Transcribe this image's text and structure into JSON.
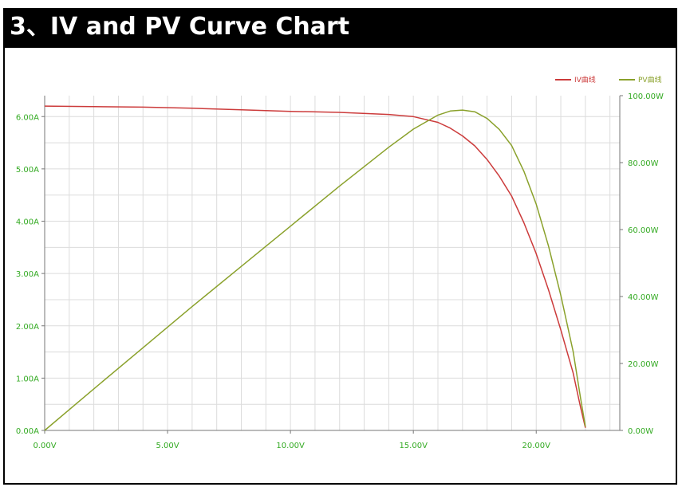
{
  "header": {
    "title": "3、IV and PV Curve Chart"
  },
  "chart_data": {
    "type": "line",
    "title": "3、IV and PV Curve Chart",
    "xlabel": "",
    "ylabel_left": "",
    "ylabel_right": "",
    "xlim": [
      0,
      23.4
    ],
    "ylim_left": [
      0,
      6.4
    ],
    "ylim_right": [
      0,
      100
    ],
    "x_ticks": [
      "0.00V",
      "5.00V",
      "10.00V",
      "15.00V",
      "20.00V"
    ],
    "x_tick_values": [
      0,
      5,
      10,
      15,
      20
    ],
    "y_left_ticks": [
      "0.00A",
      "1.00A",
      "2.00A",
      "3.00A",
      "4.00A",
      "5.00A",
      "6.00A"
    ],
    "y_left_tick_values": [
      0,
      1,
      2,
      3,
      4,
      5,
      6
    ],
    "y_right_ticks": [
      "0.00W",
      "20.00W",
      "40.00W",
      "60.00W",
      "80.00W",
      "100.00W"
    ],
    "y_right_tick_values": [
      0,
      20,
      40,
      60,
      80,
      100
    ],
    "grid": true,
    "legend_position": "top-right",
    "colors": {
      "iv": "#cc3b3b",
      "pv": "#8aa12b",
      "tick": "#33aa22",
      "grid": "#dcdcdc",
      "axis": "#777777"
    },
    "series": [
      {
        "name": "IV曲线",
        "axis": "left",
        "x": [
          0,
          2,
          4,
          6,
          8,
          10,
          12,
          14,
          15,
          16,
          16.5,
          17,
          17.5,
          18,
          18.5,
          19,
          19.5,
          20,
          20.5,
          21,
          21.5,
          21.8,
          22.0
        ],
        "y": [
          6.2,
          6.19,
          6.18,
          6.16,
          6.13,
          6.1,
          6.08,
          6.04,
          6.0,
          5.89,
          5.78,
          5.63,
          5.44,
          5.18,
          4.86,
          4.48,
          3.97,
          3.38,
          2.69,
          1.92,
          1.1,
          0.45,
          0.05
        ]
      },
      {
        "name": "PV曲线",
        "axis": "right",
        "x": [
          0,
          2,
          4,
          6,
          8,
          10,
          12,
          14,
          15,
          16,
          16.5,
          17,
          17.5,
          18,
          18.5,
          19,
          19.5,
          20,
          20.5,
          21,
          21.5,
          21.8,
          22.0
        ],
        "y": [
          0,
          12.4,
          24.7,
          37.0,
          49.0,
          61.0,
          73.0,
          84.6,
          90.0,
          94.2,
          95.4,
          95.7,
          95.2,
          93.2,
          89.9,
          85.1,
          77.4,
          67.6,
          55.1,
          40.3,
          23.6,
          9.8,
          1.1
        ]
      }
    ]
  }
}
